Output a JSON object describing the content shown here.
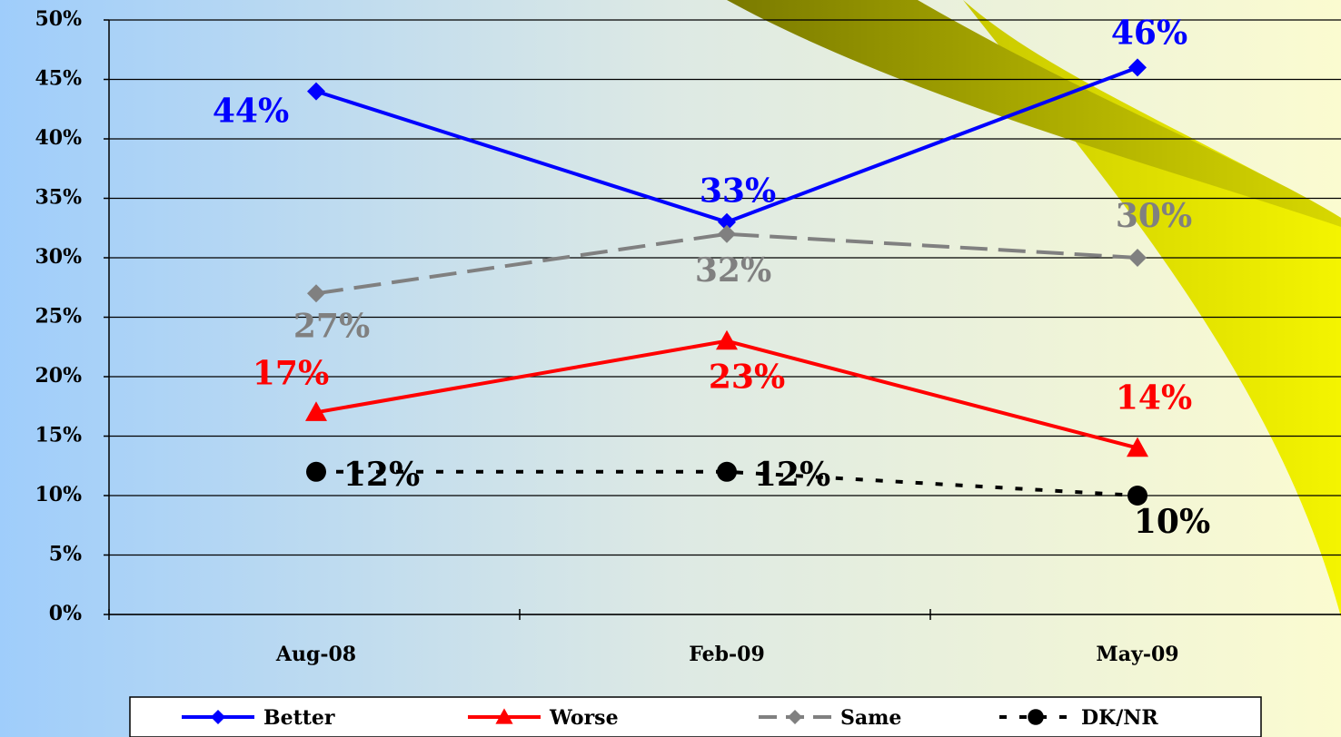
{
  "chart_data": {
    "type": "line",
    "categories": [
      "Aug-08",
      "Feb-09",
      "May-09"
    ],
    "series": [
      {
        "name": "Better",
        "color": "#0000ff",
        "marker": "diamond",
        "dash": "solid",
        "values": [
          44,
          33,
          46
        ],
        "value_labels": [
          "44%",
          "33%",
          "46%"
        ]
      },
      {
        "name": "Worse",
        "color": "#ff0000",
        "marker": "triangle",
        "dash": "solid",
        "values": [
          17,
          23,
          14
        ],
        "value_labels": [
          "17%",
          "23%",
          "14%"
        ]
      },
      {
        "name": "Same",
        "color": "#808080",
        "marker": "diamond",
        "dash": "dashed",
        "values": [
          27,
          32,
          30
        ],
        "value_labels": [
          "27%",
          "32%",
          "30%"
        ]
      },
      {
        "name": "DK/NR",
        "color": "#000000",
        "marker": "circle",
        "dash": "dotted",
        "values": [
          12,
          12,
          10
        ],
        "value_labels": [
          "12%",
          "12%",
          "10%"
        ]
      }
    ],
    "ylim": [
      0,
      50
    ],
    "yticks": [
      {
        "value": 0,
        "label": "0%"
      },
      {
        "value": 5,
        "label": "5%"
      },
      {
        "value": 10,
        "label": "10%"
      },
      {
        "value": 15,
        "label": "15%"
      },
      {
        "value": 20,
        "label": "20%"
      },
      {
        "value": 25,
        "label": "25%"
      },
      {
        "value": 30,
        "label": "30%"
      },
      {
        "value": 35,
        "label": "35%"
      },
      {
        "value": 40,
        "label": "40%"
      },
      {
        "value": 45,
        "label": "45%"
      },
      {
        "value": 50,
        "label": "50%"
      }
    ],
    "grid": true,
    "legend": "bottom"
  }
}
